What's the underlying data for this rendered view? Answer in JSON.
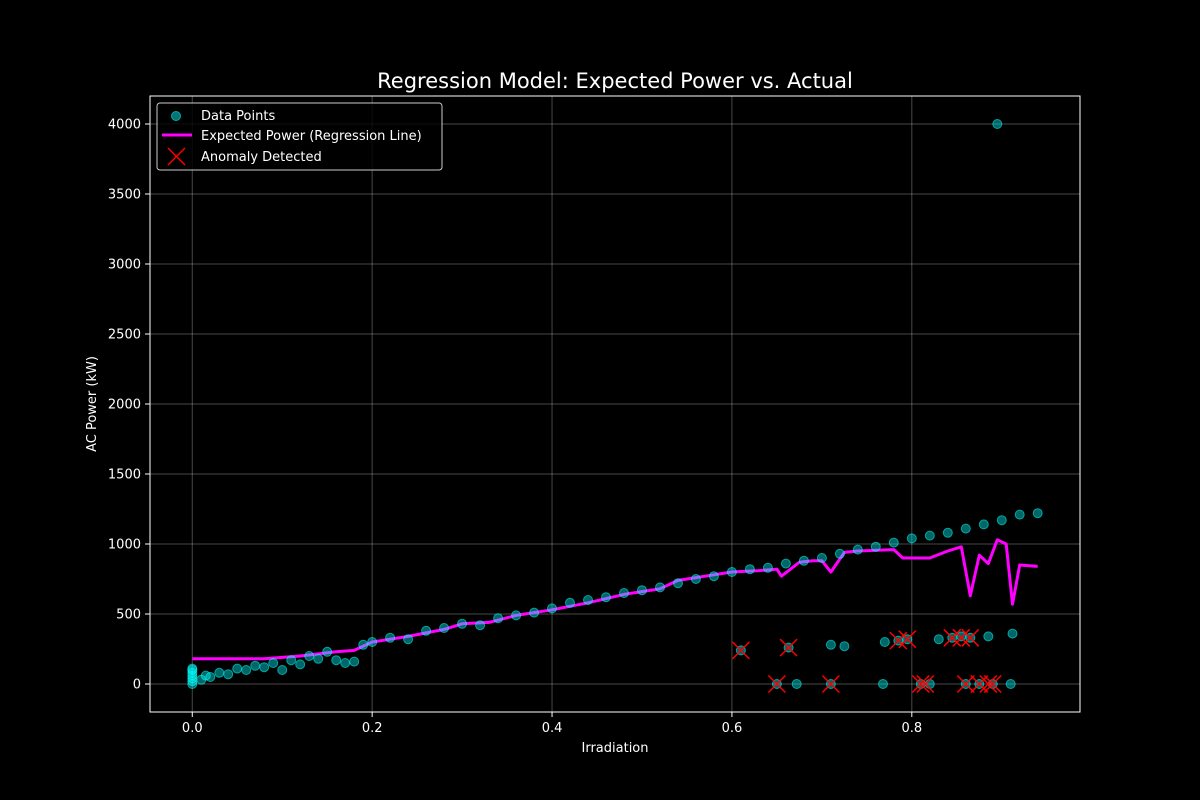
{
  "chart_data": {
    "type": "scatter",
    "title": "Regression Model: Expected Power vs. Actual",
    "xlabel": "Irradiation",
    "ylabel": "AC Power (kW)",
    "xlim": [
      -0.047,
      0.987
    ],
    "ylim": [
      -200,
      4200
    ],
    "x_ticks": [
      0.0,
      0.2,
      0.4,
      0.6,
      0.8
    ],
    "x_tick_labels": [
      "0.0",
      "0.2",
      "0.4",
      "0.6",
      "0.8"
    ],
    "y_ticks": [
      0,
      500,
      1000,
      1500,
      2000,
      2500,
      3000,
      3500,
      4000
    ],
    "y_tick_labels": [
      "0",
      "500",
      "1000",
      "1500",
      "2000",
      "2500",
      "3000",
      "3500",
      "4000"
    ],
    "grid": true,
    "legend_position": "top-left",
    "colors": {
      "background": "#000000",
      "points": "#00ffff",
      "regression": "#ff00ff",
      "anomaly": "#ff0000",
      "axes": "#ffffff"
    },
    "series": [
      {
        "name": "Data Points",
        "kind": "scatter",
        "points": [
          [
            0.0,
            0
          ],
          [
            0.0,
            20
          ],
          [
            0.0,
            40
          ],
          [
            0.0,
            60
          ],
          [
            0.0,
            80
          ],
          [
            0.0,
            100
          ],
          [
            0.0,
            110
          ],
          [
            0.01,
            30
          ],
          [
            0.015,
            60
          ],
          [
            0.02,
            50
          ],
          [
            0.03,
            80
          ],
          [
            0.04,
            70
          ],
          [
            0.05,
            110
          ],
          [
            0.06,
            100
          ],
          [
            0.07,
            130
          ],
          [
            0.08,
            120
          ],
          [
            0.09,
            150
          ],
          [
            0.1,
            100
          ],
          [
            0.11,
            170
          ],
          [
            0.12,
            140
          ],
          [
            0.13,
            200
          ],
          [
            0.14,
            180
          ],
          [
            0.15,
            230
          ],
          [
            0.16,
            170
          ],
          [
            0.17,
            150
          ],
          [
            0.18,
            160
          ],
          [
            0.19,
            280
          ],
          [
            0.2,
            300
          ],
          [
            0.22,
            330
          ],
          [
            0.24,
            320
          ],
          [
            0.26,
            380
          ],
          [
            0.28,
            400
          ],
          [
            0.3,
            430
          ],
          [
            0.32,
            420
          ],
          [
            0.34,
            470
          ],
          [
            0.36,
            490
          ],
          [
            0.38,
            510
          ],
          [
            0.4,
            540
          ],
          [
            0.42,
            580
          ],
          [
            0.44,
            600
          ],
          [
            0.46,
            620
          ],
          [
            0.48,
            650
          ],
          [
            0.5,
            670
          ],
          [
            0.52,
            690
          ],
          [
            0.54,
            720
          ],
          [
            0.56,
            750
          ],
          [
            0.58,
            770
          ],
          [
            0.6,
            800
          ],
          [
            0.62,
            820
          ],
          [
            0.64,
            830
          ],
          [
            0.66,
            860
          ],
          [
            0.68,
            880
          ],
          [
            0.7,
            900
          ],
          [
            0.72,
            930
          ],
          [
            0.74,
            960
          ],
          [
            0.76,
            980
          ],
          [
            0.78,
            1010
          ],
          [
            0.8,
            1040
          ],
          [
            0.82,
            1060
          ],
          [
            0.84,
            1080
          ],
          [
            0.86,
            1110
          ],
          [
            0.88,
            1140
          ],
          [
            0.9,
            1170
          ],
          [
            0.92,
            1210
          ],
          [
            0.94,
            1220
          ],
          [
            0.61,
            240
          ],
          [
            0.663,
            260
          ],
          [
            0.71,
            280
          ],
          [
            0.725,
            270
          ],
          [
            0.77,
            300
          ],
          [
            0.785,
            310
          ],
          [
            0.795,
            320
          ],
          [
            0.83,
            320
          ],
          [
            0.845,
            330
          ],
          [
            0.855,
            340
          ],
          [
            0.865,
            330
          ],
          [
            0.885,
            340
          ],
          [
            0.912,
            360
          ],
          [
            0.65,
            0
          ],
          [
            0.672,
            0
          ],
          [
            0.71,
            0
          ],
          [
            0.768,
            0
          ],
          [
            0.81,
            0
          ],
          [
            0.82,
            0
          ],
          [
            0.86,
            0
          ],
          [
            0.875,
            0
          ],
          [
            0.89,
            0
          ],
          [
            0.91,
            0
          ],
          [
            0.895,
            4000
          ]
        ]
      },
      {
        "name": "Expected Power (Regression Line)",
        "kind": "line",
        "points": [
          [
            0.0,
            180
          ],
          [
            0.08,
            180
          ],
          [
            0.12,
            200
          ],
          [
            0.16,
            230
          ],
          [
            0.18,
            240
          ],
          [
            0.2,
            300
          ],
          [
            0.24,
            340
          ],
          [
            0.28,
            390
          ],
          [
            0.3,
            430
          ],
          [
            0.33,
            440
          ],
          [
            0.36,
            490
          ],
          [
            0.4,
            530
          ],
          [
            0.44,
            580
          ],
          [
            0.48,
            640
          ],
          [
            0.52,
            680
          ],
          [
            0.54,
            740
          ],
          [
            0.56,
            760
          ],
          [
            0.58,
            780
          ],
          [
            0.6,
            800
          ],
          [
            0.63,
            810
          ],
          [
            0.65,
            820
          ],
          [
            0.655,
            770
          ],
          [
            0.675,
            870
          ],
          [
            0.69,
            880
          ],
          [
            0.7,
            880
          ],
          [
            0.71,
            800
          ],
          [
            0.725,
            940
          ],
          [
            0.74,
            950
          ],
          [
            0.78,
            960
          ],
          [
            0.79,
            900
          ],
          [
            0.82,
            900
          ],
          [
            0.84,
            950
          ],
          [
            0.855,
            980
          ],
          [
            0.865,
            630
          ],
          [
            0.875,
            920
          ],
          [
            0.885,
            860
          ],
          [
            0.895,
            1030
          ],
          [
            0.905,
            1000
          ],
          [
            0.912,
            570
          ],
          [
            0.92,
            850
          ],
          [
            0.94,
            840
          ]
        ]
      },
      {
        "name": "Anomaly Detected",
        "kind": "marker-x",
        "points": [
          [
            0.61,
            240
          ],
          [
            0.663,
            260
          ],
          [
            0.785,
            310
          ],
          [
            0.795,
            320
          ],
          [
            0.845,
            330
          ],
          [
            0.855,
            330
          ],
          [
            0.865,
            330
          ],
          [
            0.65,
            0
          ],
          [
            0.71,
            0
          ],
          [
            0.81,
            0
          ],
          [
            0.815,
            0
          ],
          [
            0.86,
            0
          ],
          [
            0.875,
            0
          ],
          [
            0.885,
            0
          ],
          [
            0.89,
            0
          ]
        ]
      }
    ]
  }
}
